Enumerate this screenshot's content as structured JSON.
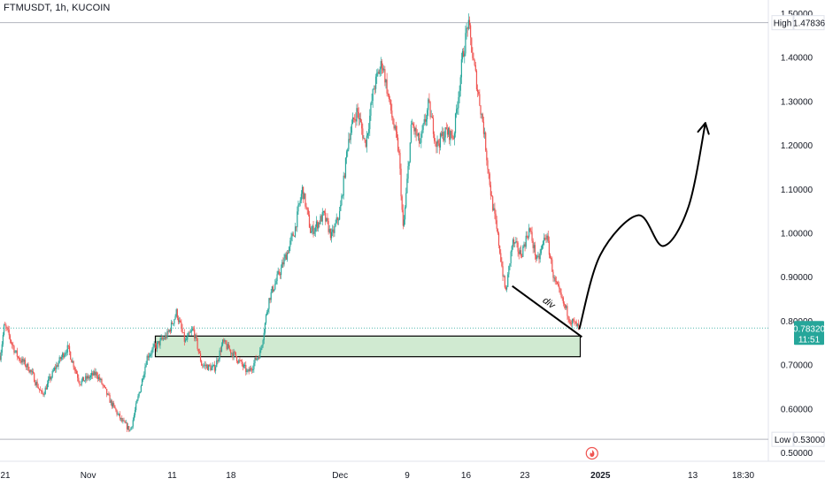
{
  "header": {
    "symbol_title": "FTMUSDT, 1h, KUCOIN"
  },
  "colors": {
    "up": "#26a69a",
    "down": "#ef5350",
    "zone_fill": "#c8e6c9",
    "price_badge": "#26a69a",
    "axis_text": "#131722",
    "grid_line": "#b2b5be"
  },
  "chart_data": {
    "type": "candlestick",
    "symbol": "FTMUSDT",
    "interval": "1h",
    "exchange": "KUCOIN",
    "ylim": [
      0.48,
      1.53
    ],
    "y_ticks": [
      "1.50000",
      "1.40000",
      "1.30000",
      "1.20000",
      "1.10000",
      "1.00000",
      "0.90000",
      "0.80000",
      "0.70000",
      "0.60000",
      "0.50000"
    ],
    "y_tick_values": [
      1.5,
      1.4,
      1.3,
      1.2,
      1.1,
      1.0,
      0.9,
      0.8,
      0.7,
      0.6,
      0.5
    ],
    "x_ticks": [
      "21",
      "Nov",
      "11",
      "18",
      "Dec",
      "9",
      "16",
      "23",
      "2025",
      "13",
      "18:30"
    ],
    "x_tick_days": [
      -10,
      0,
      10,
      17,
      30,
      38,
      45,
      52,
      61,
      72,
      78
    ],
    "x_tick_bold": [
      false,
      false,
      false,
      false,
      false,
      false,
      false,
      false,
      true,
      false,
      false
    ],
    "x_range_days": [
      -10.5,
      81
    ],
    "high": {
      "label": "High",
      "value": "1.47836"
    },
    "low": {
      "label": "Low",
      "value": "0.53000"
    },
    "last_price": {
      "value": "0.78320",
      "countdown": "11:51",
      "numeric": 0.7832
    },
    "price_path": [
      [
        -10.5,
        0.72
      ],
      [
        -10,
        0.79
      ],
      [
        -8.5,
        0.72
      ],
      [
        -7,
        0.69
      ],
      [
        -5.5,
        0.63
      ],
      [
        -4,
        0.69
      ],
      [
        -2.5,
        0.74
      ],
      [
        -1,
        0.66
      ],
      [
        1,
        0.68
      ],
      [
        2.5,
        0.62
      ],
      [
        4,
        0.57
      ],
      [
        5,
        0.55
      ],
      [
        6,
        0.63
      ],
      [
        7,
        0.72
      ],
      [
        8,
        0.74
      ],
      [
        9.5,
        0.77
      ],
      [
        10.5,
        0.82
      ],
      [
        11.5,
        0.75
      ],
      [
        12.5,
        0.78
      ],
      [
        13.5,
        0.7
      ],
      [
        15,
        0.69
      ],
      [
        16,
        0.75
      ],
      [
        17.5,
        0.72
      ],
      [
        19,
        0.68
      ],
      [
        20.5,
        0.73
      ],
      [
        21.5,
        0.85
      ],
      [
        23,
        0.92
      ],
      [
        24.5,
        1.0
      ],
      [
        25.5,
        1.1
      ],
      [
        26.5,
        1.0
      ],
      [
        28,
        1.04
      ],
      [
        29,
        0.99
      ],
      [
        30,
        1.05
      ],
      [
        31,
        1.22
      ],
      [
        32,
        1.28
      ],
      [
        33,
        1.2
      ],
      [
        34,
        1.33
      ],
      [
        35,
        1.39
      ],
      [
        36,
        1.28
      ],
      [
        37,
        1.18
      ],
      [
        37.5,
        1.0
      ],
      [
        38.5,
        1.25
      ],
      [
        39.5,
        1.2
      ],
      [
        40.5,
        1.29
      ],
      [
        41.5,
        1.2
      ],
      [
        42.5,
        1.23
      ],
      [
        43.5,
        1.22
      ],
      [
        44.5,
        1.39
      ],
      [
        45.2,
        1.48
      ],
      [
        46,
        1.37
      ],
      [
        47,
        1.25
      ],
      [
        48,
        1.08
      ],
      [
        49,
        0.96
      ],
      [
        49.7,
        0.86
      ],
      [
        50.5,
        0.98
      ],
      [
        51.5,
        0.95
      ],
      [
        52.5,
        1.01
      ],
      [
        53.5,
        0.93
      ],
      [
        54.5,
        1.0
      ],
      [
        55.5,
        0.89
      ],
      [
        56.5,
        0.84
      ],
      [
        57.5,
        0.8
      ],
      [
        58.5,
        0.78
      ]
    ],
    "support_zone": {
      "x_days": [
        8,
        58.6
      ],
      "y": [
        0.718,
        0.765
      ]
    },
    "divergence_line": {
      "x_days": [
        50.5,
        58.8
      ],
      "y": [
        0.879,
        0.763
      ],
      "label": "div"
    },
    "projection_path": [
      [
        58.5,
        0.782
      ],
      [
        61,
        0.95
      ],
      [
        65.5,
        1.04
      ],
      [
        68.5,
        0.97
      ],
      [
        71.5,
        1.06
      ],
      [
        73.5,
        1.25
      ]
    ],
    "event_marker_day": 60
  }
}
